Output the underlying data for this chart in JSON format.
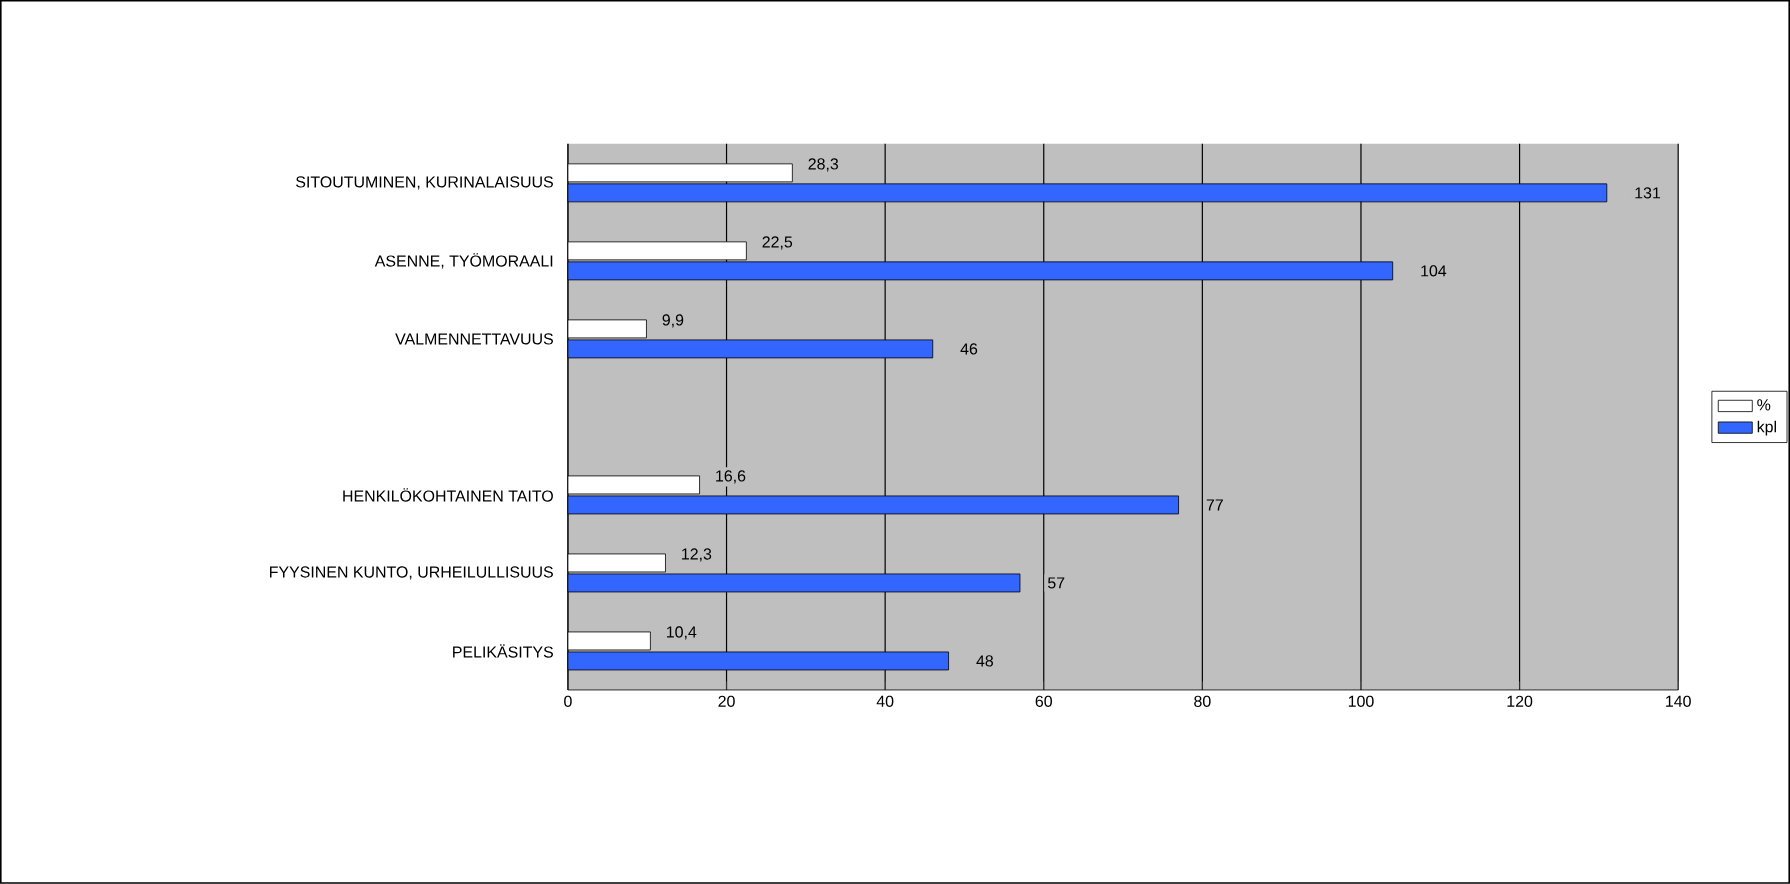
{
  "chart_data": {
    "type": "bar",
    "orientation": "horizontal",
    "categories": [
      "SITOUTUMINEN, KURINALAISUUS",
      "ASENNE, TYÖMORAALI",
      "VALMENNETTAVUUS",
      null,
      "HENKILÖKOHTAINEN TAITO",
      "FYYSINEN KUNTO, URHEILULLISUUS",
      "PELIKÄSITYS"
    ],
    "series": [
      {
        "name": "%",
        "color": "#ffffff",
        "values": [
          28.3,
          22.5,
          9.9,
          null,
          16.6,
          12.3,
          10.4
        ],
        "value_labels": [
          "28,3",
          "22,5",
          "9,9",
          null,
          "16,6",
          "12,3",
          "10,4"
        ]
      },
      {
        "name": "kpl",
        "color": "#3366ff",
        "values": [
          131,
          104,
          46,
          null,
          77,
          57,
          48
        ],
        "value_labels": [
          "131",
          "104",
          "46",
          null,
          "77",
          "57",
          "48"
        ]
      }
    ],
    "xlim": [
      0,
      140
    ],
    "xticks": [
      0,
      20,
      40,
      60,
      80,
      100,
      120,
      140
    ],
    "grid": "x",
    "legend": "right"
  }
}
